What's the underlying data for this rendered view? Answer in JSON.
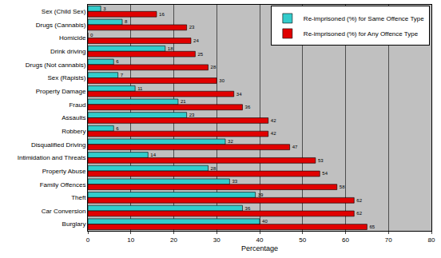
{
  "chart_data": {
    "type": "bar",
    "orientation": "horizontal",
    "x_label": "Percentage",
    "categories": [
      "Sex (Child Sex)",
      "Drugs (Cannabis)",
      "Homicide",
      "Drink driving",
      "Drugs (Not cannabis)",
      "Sex (Rapists)",
      "Property Damage",
      "Fraud",
      "Assaults",
      "Robbery",
      "Disqualified Driving",
      "Intimidation and Threats",
      "Property Abuse",
      "Family Offences",
      "Theft",
      "Car Conversion",
      "Burglary"
    ],
    "series": [
      {
        "name": "Re-imprisoned (%) for Same Offence Type",
        "color": "#33cccc",
        "values": [
          3,
          8,
          0,
          18,
          6,
          7,
          11,
          21,
          23,
          6,
          32,
          14,
          28,
          33,
          39,
          36,
          40
        ]
      },
      {
        "name": "Re-imprisoned (%) for Any Offence Type",
        "color": "#e00000",
        "values": [
          16,
          23,
          24,
          25,
          28,
          30,
          34,
          36,
          42,
          42,
          47,
          53,
          54,
          58,
          62,
          62,
          65
        ]
      }
    ],
    "xlim": [
      0,
      80
    ],
    "xticks": [
      0,
      10,
      20,
      30,
      40,
      50,
      60,
      70,
      80
    ],
    "grid": true,
    "legend": "upper right",
    "data_labels": true
  }
}
